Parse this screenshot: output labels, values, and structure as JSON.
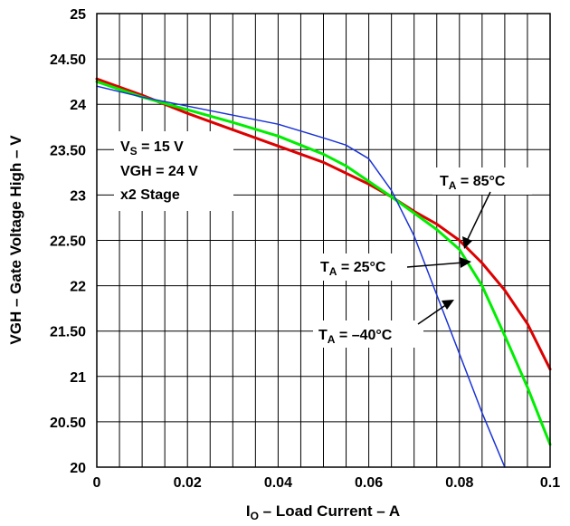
{
  "chart_data": {
    "type": "line",
    "title": "",
    "xlabel": {
      "main": "I",
      "sub": "O",
      "rest": " – Load Current – A"
    },
    "ylabel": "VGH – Gate Voltage High – V",
    "xlim": [
      0,
      0.1
    ],
    "ylim": [
      20,
      25
    ],
    "grid": true,
    "x_ticks": [
      0,
      0.02,
      0.04,
      0.06,
      0.08,
      0.1
    ],
    "x_tick_labels": [
      "0",
      "0.02",
      "0.04",
      "0.06",
      "0.08",
      "0.1"
    ],
    "y_ticks": [
      20,
      20.5,
      21,
      21.5,
      22,
      22.5,
      23,
      23.5,
      24,
      24.5,
      25
    ],
    "y_tick_labels": [
      "20",
      "20.50",
      "21",
      "21.50",
      "22",
      "22.50",
      "23",
      "23.50",
      "24",
      "24.50",
      "25"
    ],
    "conditions": [
      {
        "main": "V",
        "sub": "S",
        "rest": " = 15 V"
      },
      {
        "main": "VGH = 24 V",
        "sub": "",
        "rest": ""
      },
      {
        "main": "x2 Stage",
        "sub": "",
        "rest": ""
      }
    ],
    "series": [
      {
        "name": {
          "main": "T",
          "sub": "A",
          "rest": " = 85°C"
        },
        "color": "#dd0000",
        "x": [
          0,
          0.01,
          0.02,
          0.03,
          0.04,
          0.05,
          0.06,
          0.065,
          0.07,
          0.075,
          0.08,
          0.085,
          0.09,
          0.095,
          0.1
        ],
        "y": [
          24.28,
          24.1,
          23.9,
          23.72,
          23.54,
          23.36,
          23.12,
          22.98,
          22.82,
          22.68,
          22.5,
          22.25,
          21.95,
          21.58,
          21.08
        ]
      },
      {
        "name": {
          "main": "T",
          "sub": "A",
          "rest": " = 25°C"
        },
        "color": "#00ee00",
        "x": [
          0,
          0.01,
          0.02,
          0.03,
          0.04,
          0.05,
          0.055,
          0.06,
          0.065,
          0.07,
          0.075,
          0.08,
          0.085,
          0.09,
          0.095,
          0.1
        ],
        "y": [
          24.25,
          24.08,
          23.94,
          23.8,
          23.65,
          23.45,
          23.32,
          23.15,
          22.98,
          22.8,
          22.62,
          22.4,
          22.0,
          21.45,
          20.88,
          20.25
        ]
      },
      {
        "name": {
          "main": "T",
          "sub": "A",
          "rest": " = –40°C"
        },
        "color": "#1a33d6",
        "x": [
          0,
          0.01,
          0.02,
          0.03,
          0.04,
          0.05,
          0.055,
          0.06,
          0.065,
          0.07,
          0.075,
          0.08,
          0.085,
          0.09
        ],
        "y": [
          24.2,
          24.08,
          23.98,
          23.88,
          23.78,
          23.63,
          23.55,
          23.4,
          23.05,
          22.55,
          21.9,
          21.25,
          20.6,
          20.0
        ]
      }
    ]
  }
}
